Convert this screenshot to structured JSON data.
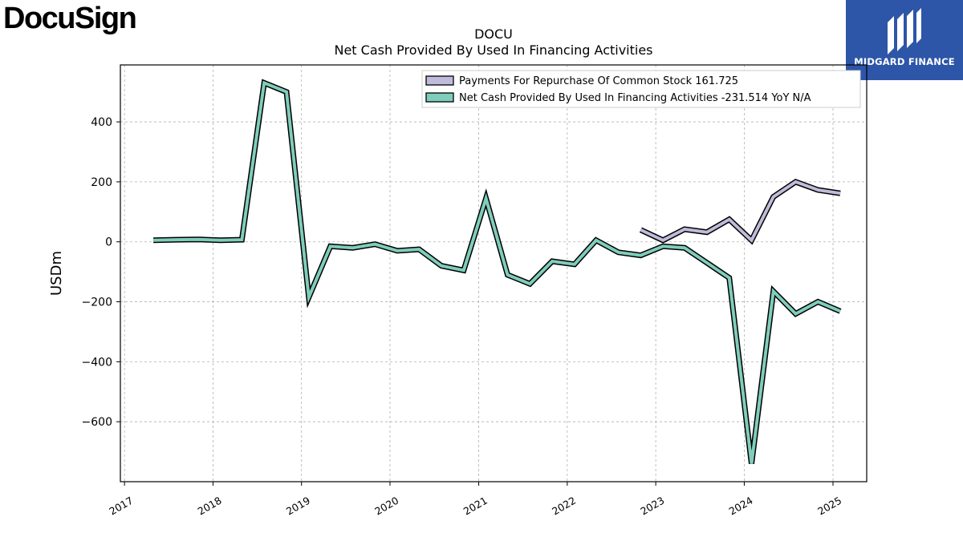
{
  "brand": {
    "name": "DocuSign"
  },
  "partner": {
    "name": "MIDGARD FINANCE"
  },
  "chart_data": {
    "type": "line",
    "title": "DOCU",
    "subtitle": "Net Cash Provided By Used In Financing Activities",
    "xlabel": "",
    "ylabel": "USDm",
    "xlim": [
      "2016-12-15",
      "2025-05-20"
    ],
    "ylim": [
      -800,
      590
    ],
    "grid": true,
    "legend_position": "top-right",
    "x_ticks": [
      "2017",
      "2018",
      "2019",
      "2020",
      "2021",
      "2022",
      "2023",
      "2024",
      "2025"
    ],
    "y_ticks": [
      -600,
      -400,
      -200,
      0,
      200,
      400
    ],
    "series": [
      {
        "name": "Payments For Repurchase Of Common Stock",
        "legend_label": "Payments For Repurchase Of Common Stock  161.725",
        "color": "#bfbbdb",
        "points": [
          [
            "2022-10-31",
            40
          ],
          [
            "2023-01-31",
            5
          ],
          [
            "2023-04-30",
            42
          ],
          [
            "2023-07-31",
            32
          ],
          [
            "2023-10-31",
            75
          ],
          [
            "2024-01-31",
            5
          ],
          [
            "2024-04-30",
            150
          ],
          [
            "2024-07-31",
            200
          ],
          [
            "2024-10-31",
            173
          ],
          [
            "2025-01-31",
            161.725
          ]
        ]
      },
      {
        "name": "Net Cash Provided By Used In Financing Activities",
        "legend_label": "Net Cash Provided By Used In Financing Activities  -231.514 YoY N/A",
        "color": "#7fcdbb",
        "points": [
          [
            "2017-04-30",
            5
          ],
          [
            "2017-07-31",
            7
          ],
          [
            "2017-10-31",
            8
          ],
          [
            "2018-01-31",
            5
          ],
          [
            "2018-04-30",
            7
          ],
          [
            "2018-07-31",
            530
          ],
          [
            "2018-10-31",
            500
          ],
          [
            "2019-01-31",
            -185
          ],
          [
            "2019-04-30",
            -15
          ],
          [
            "2019-07-31",
            -20
          ],
          [
            "2019-10-31",
            -8
          ],
          [
            "2020-01-31",
            -30
          ],
          [
            "2020-04-30",
            -25
          ],
          [
            "2020-07-31",
            -80
          ],
          [
            "2020-10-31",
            -95
          ],
          [
            "2021-01-31",
            145
          ],
          [
            "2021-04-30",
            -110
          ],
          [
            "2021-07-31",
            -140
          ],
          [
            "2021-10-31",
            -65
          ],
          [
            "2022-01-31",
            -75
          ],
          [
            "2022-04-30",
            5
          ],
          [
            "2022-07-31",
            -35
          ],
          [
            "2022-10-31",
            -45
          ],
          [
            "2023-01-31",
            -15
          ],
          [
            "2023-04-30",
            -20
          ],
          [
            "2023-07-31",
            -70
          ],
          [
            "2023-10-31",
            -120
          ],
          [
            "2024-01-31",
            -740
          ],
          [
            "2024-04-30",
            -165
          ],
          [
            "2024-07-31",
            -240
          ],
          [
            "2024-10-31",
            -200
          ],
          [
            "2025-01-31",
            -231.514
          ]
        ]
      }
    ]
  }
}
